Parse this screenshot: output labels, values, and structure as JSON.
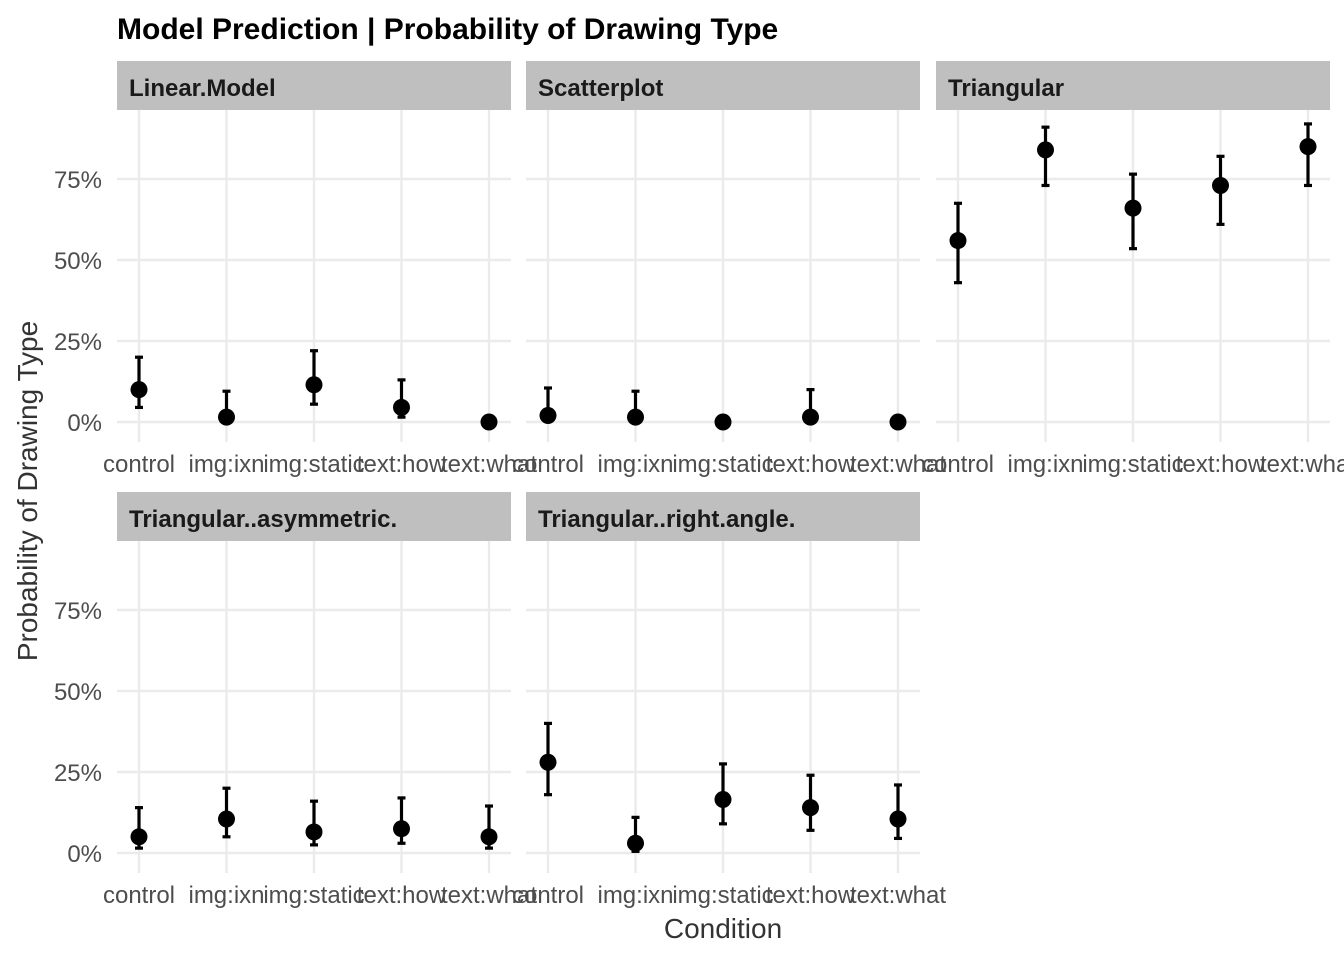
{
  "chart_data": {
    "type": "scatter",
    "title": "Model Prediction | Probability of Drawing Type",
    "xlabel": "Condition",
    "ylabel": "Probability of Drawing Type",
    "categories": [
      "control",
      "img:ixn",
      "img:static",
      "text:how",
      "text:what"
    ],
    "y_ticks": [
      "0%",
      "25%",
      "50%",
      "75%"
    ],
    "y_tick_values": [
      0,
      25,
      50,
      75
    ],
    "ylim": [
      0,
      100
    ],
    "grid": true,
    "error_bars": true,
    "panels": [
      {
        "name": "Linear.Model",
        "estimate": [
          10,
          1.5,
          11.5,
          4.5,
          0
        ],
        "lower": [
          4.5,
          0.3,
          5.5,
          1.5,
          0
        ],
        "upper": [
          20,
          9.5,
          22,
          13,
          0
        ]
      },
      {
        "name": "Scatterplot",
        "estimate": [
          2,
          1.5,
          0,
          1.5,
          0
        ],
        "lower": [
          0.5,
          0.3,
          0,
          0.3,
          0
        ],
        "upper": [
          10.5,
          9.5,
          0,
          10,
          0
        ]
      },
      {
        "name": "Triangular",
        "estimate": [
          56,
          84,
          66,
          73,
          85
        ],
        "lower": [
          43,
          73,
          53.5,
          61,
          73
        ],
        "upper": [
          67.5,
          91,
          76.5,
          82,
          92
        ]
      },
      {
        "name": "Triangular..asymmetric.",
        "estimate": [
          5,
          10.5,
          6.5,
          7.5,
          5
        ],
        "lower": [
          1.5,
          5,
          2.5,
          3,
          1.5
        ],
        "upper": [
          14,
          20,
          16,
          17,
          14.5
        ]
      },
      {
        "name": "Triangular..right.angle.",
        "estimate": [
          28,
          3,
          16.5,
          14,
          10.5
        ],
        "lower": [
          18,
          0.5,
          9,
          7,
          4.5
        ],
        "upper": [
          40,
          11,
          27.5,
          24,
          21
        ]
      }
    ]
  }
}
